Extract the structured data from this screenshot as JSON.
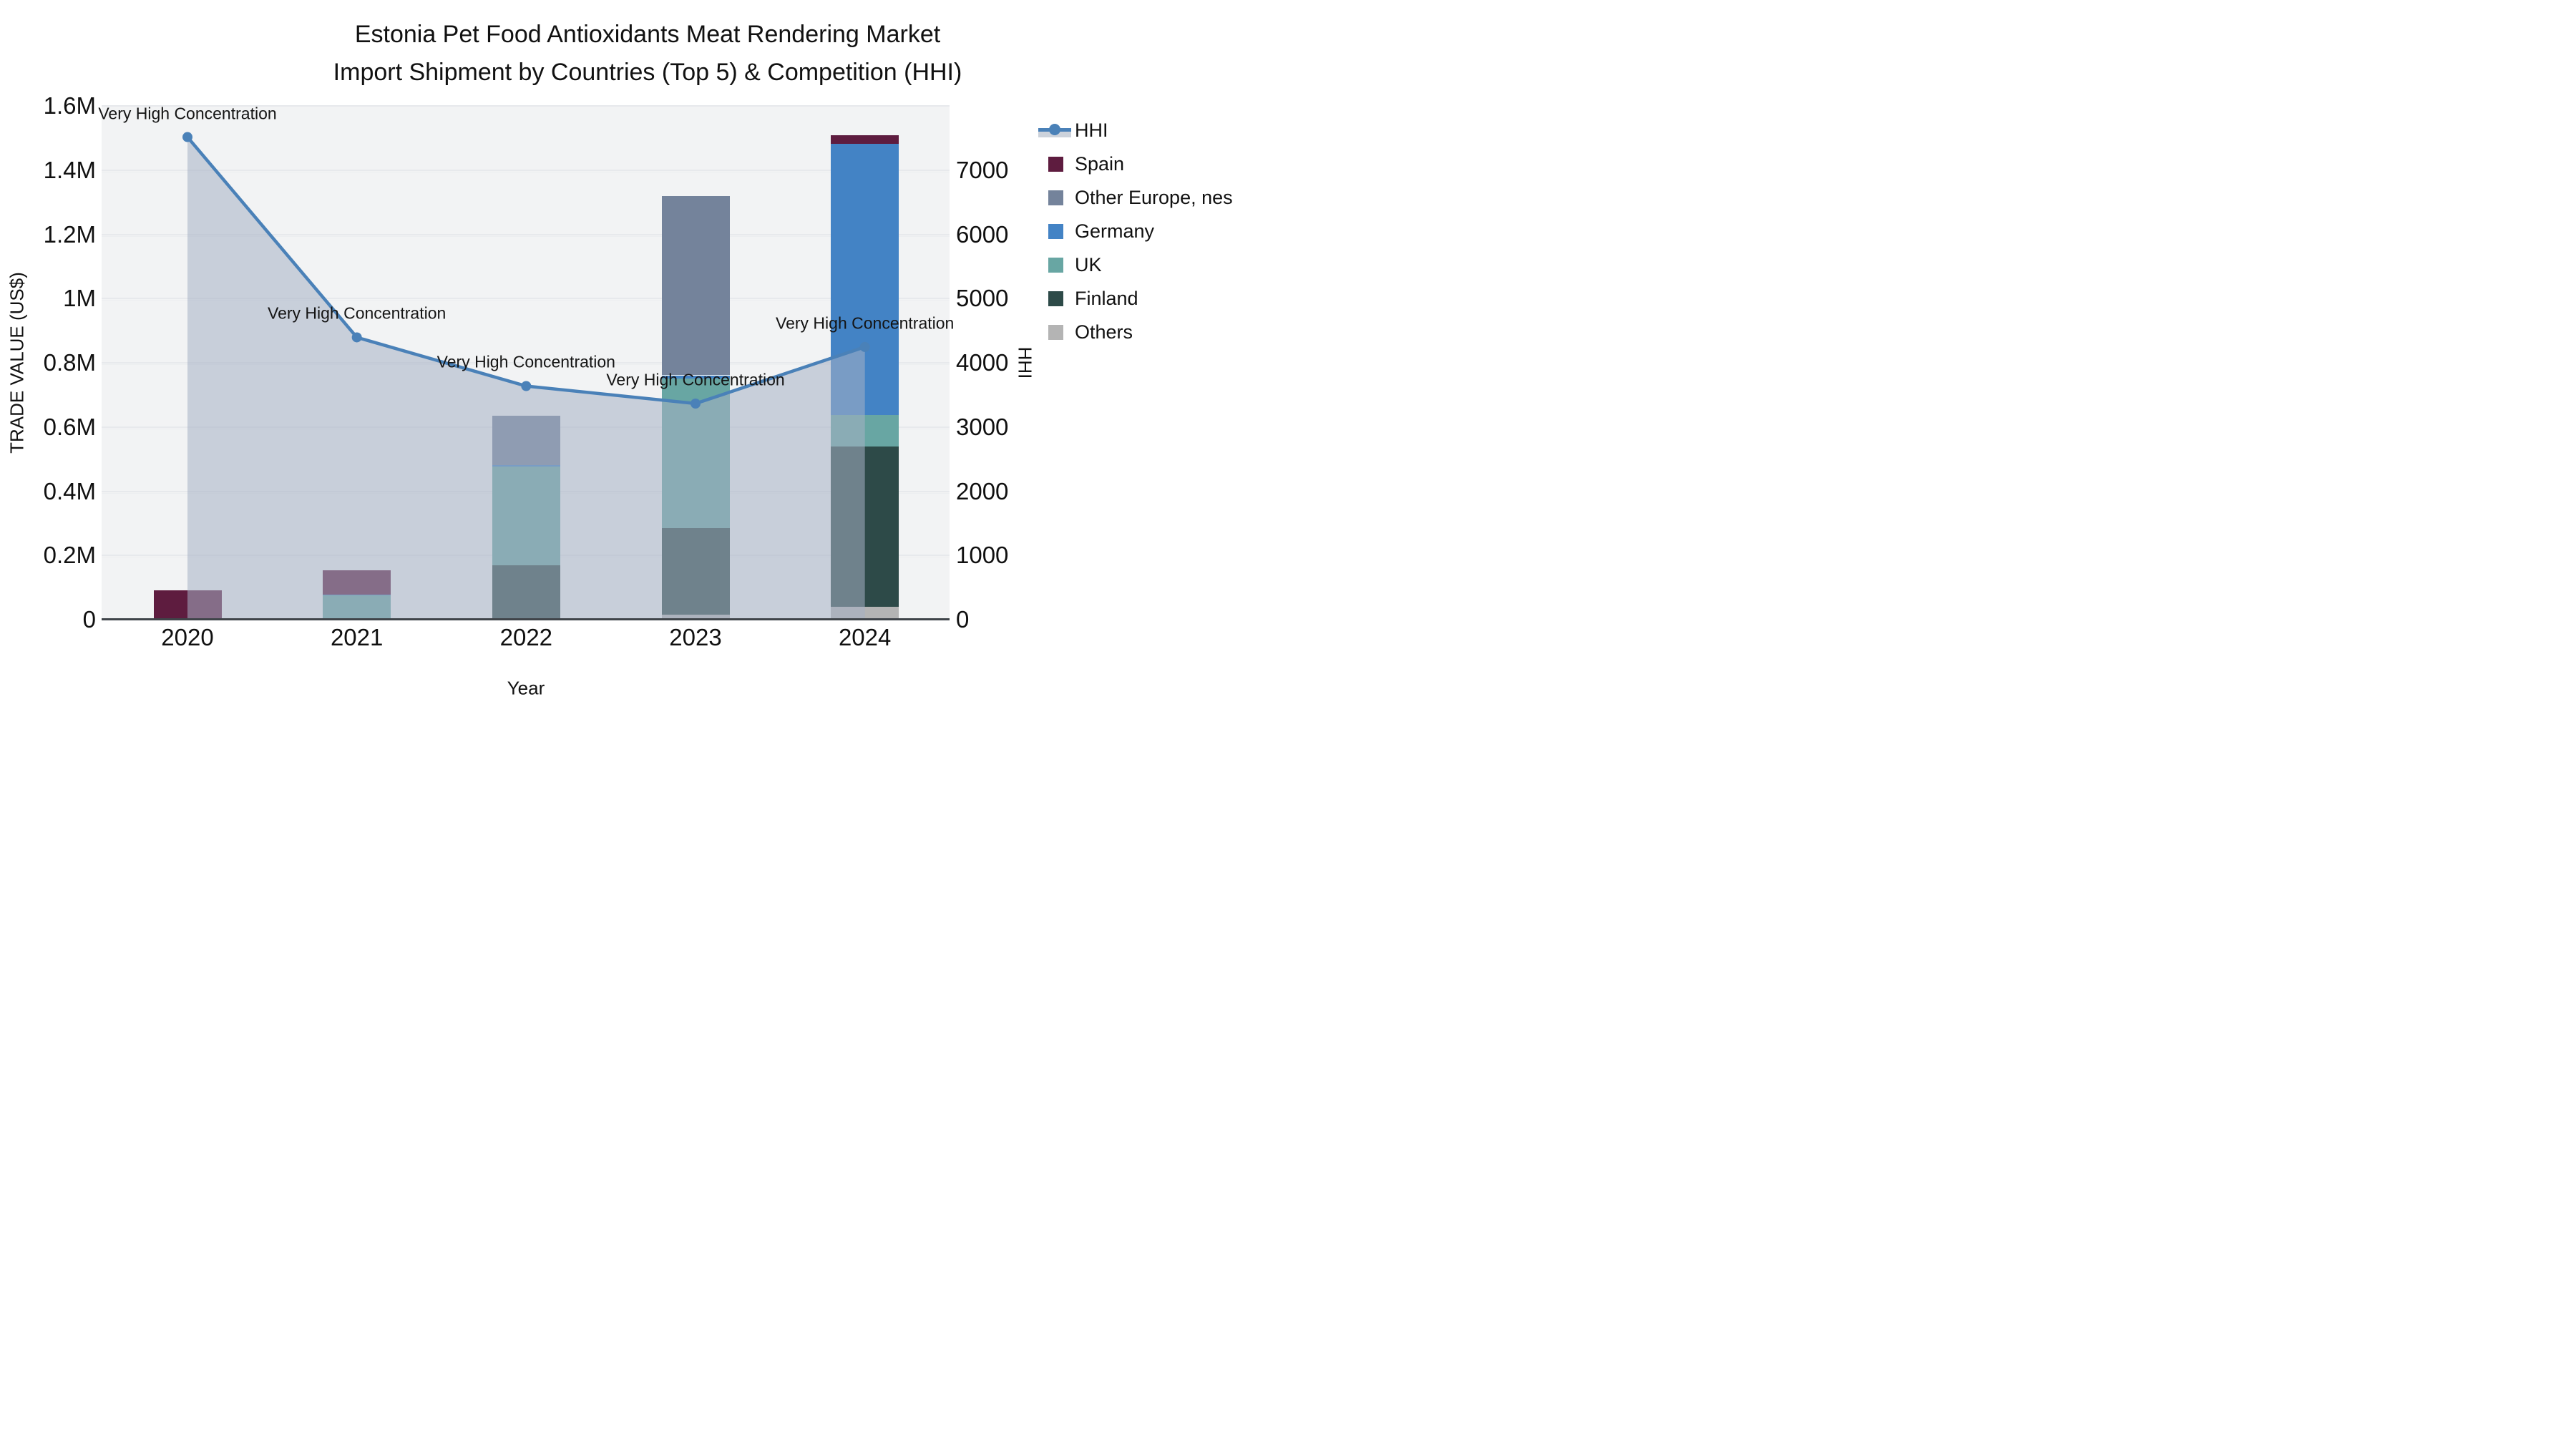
{
  "title": {
    "line1": "Estonia Pet Food Antioxidants Meat Rendering Market",
    "line2": "Import Shipment by Countries (Top 5) & Competition (HHI)"
  },
  "axes": {
    "y_left": {
      "label": "TRADE VALUE (US$)",
      "ticks": [
        "0",
        "0.2M",
        "0.4M",
        "0.6M",
        "0.8M",
        "1M",
        "1.2M",
        "1.4M",
        "1.6M"
      ],
      "range": [
        0,
        1600000
      ]
    },
    "y_right": {
      "label": "HHI",
      "ticks": [
        "0",
        "1000",
        "2000",
        "3000",
        "4000",
        "5000",
        "6000",
        "7000"
      ],
      "range": [
        0,
        8000
      ]
    },
    "x": {
      "label": "Year",
      "categories": [
        "2020",
        "2021",
        "2022",
        "2023",
        "2024"
      ]
    }
  },
  "legend": {
    "items": [
      {
        "label": "HHI",
        "type": "line",
        "color": "#4a81b8"
      },
      {
        "label": "Spain",
        "type": "square",
        "color": "#5e1c3f"
      },
      {
        "label": "Other Europe, nes",
        "type": "square",
        "color": "#74839b"
      },
      {
        "label": "Germany",
        "type": "square",
        "color": "#4383c5"
      },
      {
        "label": "UK",
        "type": "square",
        "color": "#68a6a3"
      },
      {
        "label": "Finland",
        "type": "square",
        "color": "#2d4a48"
      },
      {
        "label": "Others",
        "type": "square",
        "color": "#b4b4b4"
      }
    ]
  },
  "chart_data": {
    "type": "bar",
    "subtype": "stacked-bars-with-line",
    "categories": [
      "2020",
      "2021",
      "2022",
      "2023",
      "2024"
    ],
    "bar_series": [
      {
        "name": "Others",
        "color": "#b4b4b4",
        "values": [
          0,
          0,
          0,
          15000,
          40000
        ]
      },
      {
        "name": "Finland",
        "color": "#2d4a48",
        "values": [
          0,
          0,
          169000,
          271000,
          500000
        ]
      },
      {
        "name": "UK",
        "color": "#68a6a3",
        "values": [
          2000,
          75000,
          308000,
          466000,
          98000
        ]
      },
      {
        "name": "Germany",
        "color": "#4383c5",
        "values": [
          3000,
          2000,
          5000,
          9000,
          845000
        ]
      },
      {
        "name": "Other Europe, nes",
        "color": "#74839b",
        "values": [
          0,
          0,
          152000,
          558000,
          0
        ]
      },
      {
        "name": "Spain",
        "color": "#5e1c3f",
        "values": [
          87000,
          76000,
          0,
          0,
          25000
        ]
      }
    ],
    "bar_totals": [
      92000,
      153000,
      634000,
      1319000,
      1508000
    ],
    "line_series": {
      "name": "HHI",
      "axis": "right",
      "color": "#4a81b8",
      "area_fill": "rgba(166,176,196,0.55)",
      "values": [
        7515,
        4396,
        3638,
        3365,
        4246
      ]
    },
    "annotations": [
      {
        "x": "2020",
        "text": "Very High Concentration"
      },
      {
        "x": "2021",
        "text": "Very High Concentration"
      },
      {
        "x": "2022",
        "text": "Very High Concentration"
      },
      {
        "x": "2023",
        "text": "Very High Concentration"
      },
      {
        "x": "2024",
        "text": "Very High Concentration"
      }
    ],
    "title": "Estonia Pet Food Antioxidants Meat Rendering Market Import Shipment by Countries (Top 5) & Competition (HHI)",
    "xlabel": "Year",
    "ylabel_left": "TRADE VALUE (US$)",
    "ylabel_right": "HHI",
    "ylim_left": [
      0,
      1600000
    ],
    "ylim_right": [
      0,
      8000
    ],
    "grid": true,
    "legend_position": "right",
    "plot_background": "#f2f3f4"
  }
}
